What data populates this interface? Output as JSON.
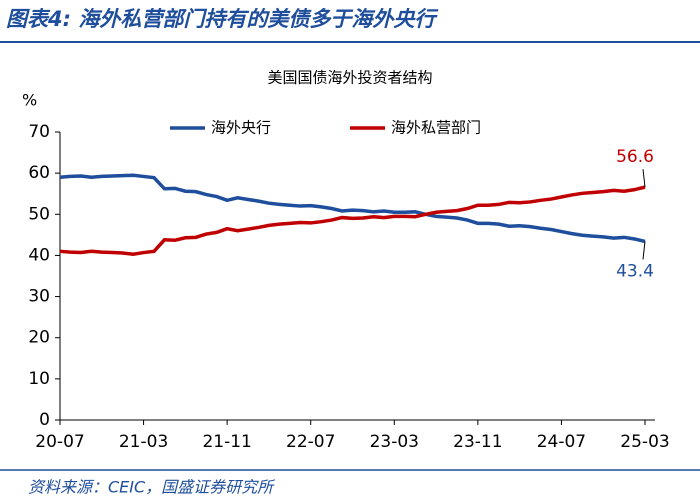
{
  "header": {
    "title": "图表4: 海外私营部门持有的美债多于海外央行"
  },
  "chart_data": {
    "type": "line",
    "title": "美国国债海外投资者结构",
    "y_unit": "%",
    "categories": [
      "20-07",
      null,
      null,
      null,
      null,
      null,
      null,
      null,
      "21-03",
      null,
      null,
      null,
      null,
      null,
      null,
      null,
      "21-11",
      null,
      null,
      null,
      null,
      null,
      null,
      null,
      "22-07",
      null,
      null,
      null,
      null,
      null,
      null,
      null,
      "23-03",
      null,
      null,
      null,
      null,
      null,
      null,
      null,
      "23-11",
      null,
      null,
      null,
      null,
      null,
      null,
      null,
      "24-07",
      null,
      null,
      null,
      null,
      null,
      null,
      null,
      "25-03"
    ],
    "series": [
      {
        "name": "海外央行",
        "color": "#1f4e9c",
        "values": [
          59.0,
          59.2,
          59.3,
          59.0,
          59.2,
          59.3,
          59.4,
          59.5,
          59.2,
          58.9,
          56.2,
          56.3,
          55.6,
          55.5,
          54.8,
          54.3,
          53.4,
          54.0,
          53.6,
          53.2,
          52.7,
          52.4,
          52.2,
          52.0,
          52.1,
          51.8,
          51.4,
          50.8,
          51.0,
          50.9,
          50.6,
          50.8,
          50.5,
          50.5,
          50.6,
          50.0,
          49.5,
          49.3,
          49.1,
          48.6,
          47.8,
          47.8,
          47.6,
          47.1,
          47.2,
          47.0,
          46.6,
          46.3,
          45.8,
          45.3,
          44.9,
          44.7,
          44.5,
          44.2,
          44.4,
          44.0,
          43.4
        ]
      },
      {
        "name": "海外私营部门",
        "color": "#c00000",
        "values": [
          41.0,
          40.8,
          40.7,
          41.0,
          40.8,
          40.7,
          40.6,
          40.3,
          40.7,
          41.0,
          43.8,
          43.7,
          44.3,
          44.4,
          45.2,
          45.6,
          46.5,
          46.0,
          46.4,
          46.8,
          47.3,
          47.6,
          47.8,
          48.0,
          47.9,
          48.2,
          48.6,
          49.2,
          49.0,
          49.1,
          49.4,
          49.2,
          49.5,
          49.5,
          49.4,
          50.0,
          50.5,
          50.7,
          50.9,
          51.4,
          52.2,
          52.2,
          52.4,
          52.9,
          52.8,
          53.0,
          53.4,
          53.7,
          54.2,
          54.7,
          55.1,
          55.3,
          55.5,
          55.8,
          55.6,
          56.0,
          56.6
        ]
      }
    ],
    "ylim": [
      0,
      70
    ],
    "yticks": [
      0,
      10,
      20,
      30,
      40,
      50,
      60,
      70
    ],
    "grid": false
  },
  "footer": {
    "source": "资料来源：CEIC，国盛证券研究所"
  }
}
